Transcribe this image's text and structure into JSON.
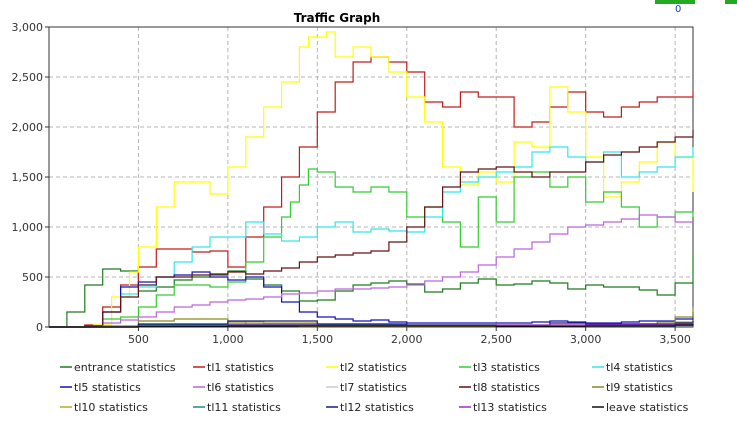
{
  "badge": {
    "count": "0"
  },
  "chart_data": {
    "type": "line",
    "title": "Traffic Graph",
    "xlabel": "",
    "ylabel": "",
    "xlim": [
      0,
      3600
    ],
    "ylim": [
      0,
      3000
    ],
    "x_ticks": [
      500,
      1000,
      1500,
      2000,
      2500,
      3000,
      3500
    ],
    "x_tick_labels": [
      "500",
      "1,000",
      "1,500",
      "2,000",
      "2,500",
      "3,000",
      "3,500"
    ],
    "y_ticks": [
      0,
      500,
      1000,
      1500,
      2000,
      2500,
      3000
    ],
    "y_tick_labels": [
      "0",
      "500",
      "1,000",
      "1,500",
      "2,000",
      "2,500",
      "3,000"
    ],
    "grid": true,
    "legend_position": "bottom",
    "series": [
      {
        "name": "entrance statistics",
        "color": "#1e7a1e",
        "x": [
          0,
          100,
          200,
          300,
          400,
          500,
          600,
          700,
          800,
          900,
          1000,
          1100,
          1200,
          1300,
          1400,
          1500,
          1600,
          1700,
          1800,
          1900,
          2000,
          2100,
          2200,
          2300,
          2400,
          2500,
          2600,
          2700,
          2800,
          2900,
          3000,
          3100,
          3200,
          3300,
          3400,
          3500,
          3600
        ],
        "y": [
          0,
          150,
          420,
          580,
          560,
          360,
          400,
          470,
          500,
          520,
          560,
          480,
          420,
          360,
          260,
          270,
          360,
          420,
          440,
          460,
          430,
          350,
          380,
          440,
          480,
          420,
          430,
          460,
          440,
          380,
          420,
          400,
          400,
          370,
          320,
          440,
          730
        ]
      },
      {
        "name": "tl1 statistics",
        "color": "#c41c1c",
        "x": [
          0,
          200,
          300,
          400,
          500,
          600,
          700,
          800,
          900,
          1000,
          1100,
          1200,
          1300,
          1400,
          1500,
          1600,
          1700,
          1800,
          1900,
          2000,
          2100,
          2200,
          2300,
          2400,
          2500,
          2600,
          2700,
          2800,
          2900,
          3000,
          3100,
          3200,
          3300,
          3400,
          3500,
          3600
        ],
        "y": [
          0,
          20,
          200,
          420,
          600,
          780,
          780,
          750,
          760,
          600,
          900,
          1200,
          1500,
          1800,
          2150,
          2450,
          2650,
          2700,
          2650,
          2550,
          2250,
          2200,
          2350,
          2300,
          2300,
          2000,
          2050,
          2200,
          2350,
          2150,
          2100,
          2200,
          2250,
          2300,
          2300,
          2350
        ]
      },
      {
        "name": "tl2 statistics",
        "color": "#ffff00",
        "x": [
          0,
          250,
          350,
          450,
          500,
          600,
          700,
          800,
          900,
          1000,
          1100,
          1200,
          1300,
          1400,
          1450,
          1500,
          1550,
          1600,
          1700,
          1800,
          1900,
          2000,
          2100,
          2200,
          2300,
          2400,
          2500,
          2600,
          2700,
          2800,
          2900,
          3000,
          3100,
          3200,
          3300,
          3400,
          3500,
          3600
        ],
        "y": [
          0,
          20,
          300,
          550,
          800,
          1200,
          1450,
          1450,
          1330,
          1600,
          1900,
          2200,
          2450,
          2800,
          2900,
          2900,
          2950,
          2700,
          2800,
          2700,
          2550,
          2300,
          2050,
          1600,
          1420,
          1550,
          1450,
          1850,
          1800,
          2400,
          2150,
          1700,
          1300,
          1450,
          1650,
          1850,
          1700,
          1350
        ]
      },
      {
        "name": "tl3 statistics",
        "color": "#33cc33",
        "x": [
          0,
          200,
          300,
          400,
          500,
          600,
          700,
          800,
          900,
          1000,
          1100,
          1200,
          1300,
          1350,
          1400,
          1450,
          1500,
          1600,
          1700,
          1800,
          1900,
          2000,
          2100,
          2200,
          2300,
          2400,
          2500,
          2600,
          2700,
          2800,
          2900,
          3000,
          3100,
          3200,
          3300,
          3400,
          3500,
          3600
        ],
        "y": [
          0,
          10,
          80,
          100,
          200,
          320,
          420,
          420,
          400,
          450,
          650,
          900,
          1100,
          1250,
          1420,
          1580,
          1550,
          1400,
          1350,
          1400,
          1350,
          1100,
          1200,
          1050,
          800,
          1300,
          1050,
          1500,
          1550,
          1400,
          1500,
          1250,
          1350,
          1200,
          1000,
          1100,
          1150,
          1100
        ]
      },
      {
        "name": "tl4 statistics",
        "color": "#33e6e6",
        "x": [
          0,
          200,
          300,
          400,
          500,
          600,
          700,
          800,
          900,
          1000,
          1100,
          1200,
          1300,
          1400,
          1500,
          1600,
          1700,
          1800,
          1900,
          2000,
          2100,
          2200,
          2300,
          2400,
          2500,
          2600,
          2700,
          2800,
          2900,
          3000,
          3100,
          3200,
          3300,
          3400,
          3500,
          3600
        ],
        "y": [
          0,
          10,
          150,
          330,
          400,
          500,
          650,
          800,
          900,
          900,
          1050,
          930,
          860,
          900,
          1000,
          1050,
          950,
          980,
          960,
          950,
          1100,
          1350,
          1450,
          1500,
          1550,
          1600,
          1750,
          1800,
          1700,
          1650,
          1750,
          1500,
          1550,
          1600,
          1700,
          1800
        ]
      },
      {
        "name": "tl5 statistics",
        "color": "#1010c0",
        "x": [
          0,
          200,
          300,
          400,
          500,
          600,
          700,
          800,
          900,
          1000,
          1100,
          1200,
          1300,
          1400,
          1500,
          1600,
          1700,
          1800,
          1900,
          2000,
          2100,
          2200,
          2300,
          2400,
          2500,
          2600,
          2700,
          2800,
          2900,
          3000,
          3100,
          3200,
          3300,
          3400,
          3500,
          3600
        ],
        "y": [
          0,
          10,
          150,
          400,
          450,
          500,
          520,
          550,
          500,
          470,
          500,
          400,
          250,
          150,
          100,
          80,
          60,
          70,
          50,
          40,
          40,
          40,
          40,
          40,
          40,
          40,
          50,
          60,
          50,
          40,
          40,
          50,
          60,
          60,
          80,
          150
        ]
      },
      {
        "name": "tl6 statistics",
        "color": "#bb66dd",
        "x": [
          0,
          200,
          300,
          400,
          500,
          600,
          700,
          800,
          900,
          1000,
          1100,
          1200,
          1300,
          1400,
          1500,
          1600,
          1700,
          1800,
          1900,
          2000,
          2100,
          2200,
          2300,
          2400,
          2500,
          2600,
          2700,
          2800,
          2900,
          3000,
          3100,
          3200,
          3300,
          3400,
          3500,
          3600
        ],
        "y": [
          0,
          10,
          40,
          70,
          100,
          150,
          200,
          220,
          250,
          270,
          280,
          300,
          330,
          340,
          360,
          380,
          380,
          390,
          400,
          420,
          460,
          500,
          550,
          620,
          700,
          780,
          850,
          930,
          1000,
          1020,
          1050,
          1080,
          1120,
          1100,
          1050,
          1050
        ]
      },
      {
        "name": "tl7 statistics",
        "color": "#cccccc",
        "x": [
          0,
          500,
          1000,
          1500,
          2000,
          2500,
          3000,
          3500,
          3600
        ],
        "y": [
          0,
          10,
          15,
          10,
          10,
          10,
          10,
          15,
          20
        ]
      },
      {
        "name": "tl8 statistics",
        "color": "#661111",
        "x": [
          0,
          200,
          300,
          400,
          500,
          600,
          700,
          800,
          900,
          1000,
          1100,
          1200,
          1300,
          1400,
          1500,
          1600,
          1700,
          1800,
          1900,
          2000,
          2100,
          2200,
          2300,
          2400,
          2500,
          2600,
          2700,
          2800,
          2900,
          3000,
          3100,
          3200,
          3300,
          3400,
          3500,
          3600
        ],
        "y": [
          0,
          10,
          150,
          300,
          420,
          500,
          500,
          520,
          530,
          550,
          530,
          560,
          590,
          650,
          700,
          720,
          740,
          760,
          850,
          1000,
          1200,
          1400,
          1550,
          1580,
          1600,
          1550,
          1500,
          1550,
          1550,
          1650,
          1720,
          1750,
          1800,
          1850,
          1900,
          1970
        ]
      },
      {
        "name": "tl9 statistics",
        "color": "#8a8a1a",
        "x": [
          0,
          300,
          500,
          700,
          900,
          1000,
          1100,
          1200,
          1300,
          1400,
          1500,
          2000,
          2500,
          3000,
          3400,
          3500,
          3600
        ],
        "y": [
          0,
          10,
          60,
          80,
          80,
          50,
          30,
          20,
          10,
          5,
          5,
          5,
          5,
          10,
          50,
          100,
          200
        ]
      },
      {
        "name": "tl10 statistics",
        "color": "#b0b020",
        "x": [
          0,
          500,
          1000,
          1200,
          1500,
          2000,
          2500,
          3000,
          3500,
          3600
        ],
        "y": [
          0,
          20,
          50,
          40,
          30,
          20,
          20,
          30,
          50,
          60
        ]
      },
      {
        "name": "tl11 statistics",
        "color": "#1a8a8a",
        "x": [
          0,
          500,
          1000,
          1500,
          2000,
          2500,
          3000,
          3500,
          3600
        ],
        "y": [
          0,
          20,
          30,
          20,
          15,
          10,
          10,
          15,
          20
        ]
      },
      {
        "name": "tl12 statistics",
        "color": "#1a1a80",
        "x": [
          0,
          500,
          1000,
          1500,
          2000,
          2500,
          2800,
          3000,
          3500,
          3600
        ],
        "y": [
          0,
          30,
          60,
          30,
          20,
          15,
          40,
          30,
          40,
          60
        ]
      },
      {
        "name": "tl13 statistics",
        "color": "#9b30c0",
        "x": [
          0,
          500,
          1000,
          1500,
          2000,
          2500,
          3000,
          3500,
          3600
        ],
        "y": [
          0,
          10,
          20,
          15,
          15,
          20,
          20,
          30,
          40
        ]
      },
      {
        "name": "leave statistics",
        "color": "#111111",
        "x": [
          0,
          500,
          1000,
          1500,
          2000,
          2500,
          3000,
          3500,
          3600
        ],
        "y": [
          0,
          5,
          10,
          10,
          10,
          5,
          10,
          20,
          30
        ]
      }
    ]
  }
}
